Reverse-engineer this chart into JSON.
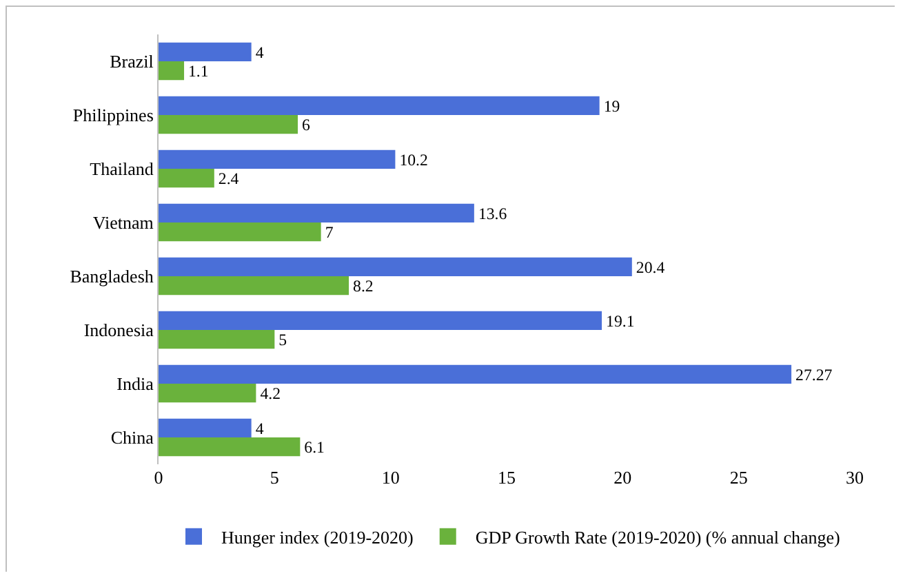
{
  "chart_data": {
    "type": "bar",
    "orientation": "horizontal",
    "categories": [
      "Brazil",
      "Philippines",
      "Thailand",
      "Vietnam",
      "Bangladesh",
      "Indonesia",
      "India",
      "China"
    ],
    "series": [
      {
        "name": "Hunger index (2019-2020)",
        "color": "#4a6fd8",
        "values": [
          4,
          19,
          10.2,
          13.6,
          20.4,
          19.1,
          27.27,
          4
        ]
      },
      {
        "name": "GDP Growth Rate (2019-2020) (% annual change)",
        "color": "#6ab23c",
        "values": [
          1.1,
          6,
          2.4,
          7,
          8.2,
          5,
          4.2,
          6.1
        ]
      }
    ],
    "xlim": [
      0,
      30
    ],
    "xticks": [
      0,
      5,
      10,
      15,
      20,
      25,
      30
    ],
    "grid": false,
    "legend": "bottom",
    "data_labels": true
  }
}
